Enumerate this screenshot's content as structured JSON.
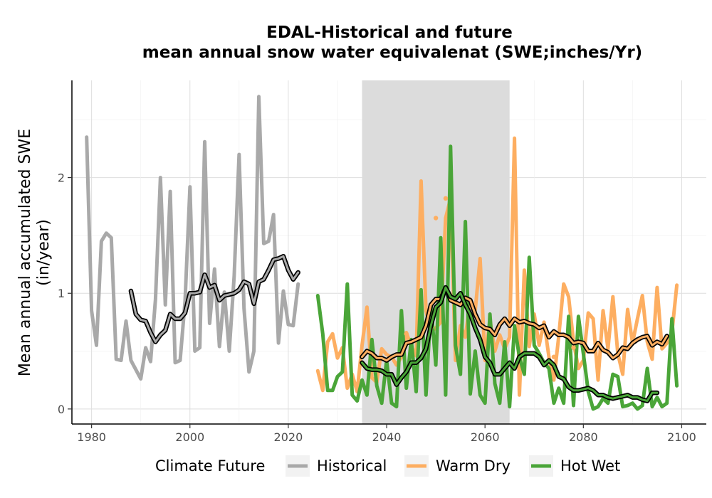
{
  "chart_data": {
    "type": "line",
    "title_line1": "EDAL-Historical and future",
    "title_line2": "mean annual snow water equivalenat (SWE;inches/Yr)",
    "xlabel": "",
    "ylabel_line1": "Mean annual accumulated SWE",
    "ylabel_line2": "(in/year)",
    "xlim": [
      1976,
      2105
    ],
    "ylim": [
      -0.13,
      2.84
    ],
    "x_ticks": [
      1980,
      2000,
      2020,
      2040,
      2060,
      2080,
      2100
    ],
    "y_ticks": [
      0,
      1,
      2
    ],
    "grid": true,
    "shaded_period": [
      2035,
      2065
    ],
    "legend": {
      "title": "Climate Future",
      "position": "bottom",
      "entries": [
        {
          "name": "Historical",
          "color": "#a9a9a9"
        },
        {
          "name": "Warm Dry",
          "color": "#fdae61"
        },
        {
          "name": "Hot Wet",
          "color": "#4aa538"
        }
      ]
    },
    "series": [
      {
        "name": "Historical",
        "color": "#a9a9a9",
        "x_start": 1979,
        "values": [
          2.35,
          0.85,
          0.55,
          1.45,
          1.52,
          1.48,
          0.43,
          0.42,
          0.76,
          0.42,
          0.34,
          0.26,
          0.53,
          0.41,
          0.95,
          2.0,
          0.9,
          1.88,
          0.4,
          0.42,
          0.93,
          1.92,
          0.5,
          0.53,
          2.31,
          0.74,
          1.21,
          0.54,
          1.01,
          0.5,
          1.15,
          2.2,
          0.87,
          0.32,
          0.5,
          2.7,
          1.43,
          1.45,
          1.68,
          0.57,
          1.02,
          0.73,
          0.72,
          1.08
        ]
      },
      {
        "name": "Historical 10-yr running mean",
        "color": "#a9a9a9",
        "smoothed": true,
        "x_start": 1988,
        "values": [
          1.02,
          0.82,
          0.77,
          0.76,
          0.66,
          0.58,
          0.64,
          0.68,
          0.82,
          0.78,
          0.78,
          0.83,
          1.0,
          1.0,
          1.01,
          1.16,
          1.05,
          1.07,
          0.94,
          0.98,
          0.99,
          1.0,
          1.03,
          1.1,
          1.08,
          0.91,
          1.1,
          1.12,
          1.2,
          1.29,
          1.3,
          1.32,
          1.2,
          1.12,
          1.18
        ]
      },
      {
        "name": "Warm Dry",
        "color": "#fdae61",
        "x_start": 2026,
        "values": [
          0.33,
          0.16,
          0.58,
          0.65,
          0.44,
          0.53,
          0.18,
          0.3,
          0.15,
          0.55,
          0.88,
          0.27,
          0.23,
          0.52,
          0.47,
          0.45,
          0.38,
          0.45,
          0.66,
          0.54,
          0.46,
          1.97,
          0.85,
          0.67,
          0.7,
          0.75,
          1.65,
          1.82,
          0.42,
          0.72,
          0.62,
          0.95,
          0.85,
          1.3,
          0.42,
          0.77,
          0.5,
          0.64,
          0.52,
          0.62,
          2.34,
          0.12,
          1.2,
          0.54,
          0.82,
          0.55,
          0.75,
          0.45,
          0.25,
          0.63,
          1.08,
          0.97,
          0.58,
          0.35,
          0.42,
          0.83,
          0.78,
          0.25,
          0.85,
          0.52,
          0.97,
          0.48,
          0.3,
          0.86,
          0.57,
          0.78,
          0.98,
          0.58,
          0.43,
          1.05,
          0.52,
          0.57,
          0.66,
          1.07
        ]
      },
      {
        "name": "Hot Wet",
        "color": "#4aa538",
        "x_start": 2026,
        "values": [
          0.98,
          0.65,
          0.16,
          0.16,
          0.28,
          0.32,
          1.08,
          0.12,
          0.07,
          0.25,
          0.12,
          0.6,
          0.2,
          0.05,
          0.42,
          0.05,
          0.02,
          0.85,
          0.18,
          0.6,
          0.15,
          1.03,
          0.12,
          0.9,
          0.38,
          1.48,
          0.12,
          2.27,
          0.55,
          0.3,
          1.62,
          0.13,
          0.5,
          0.12,
          0.05,
          0.82,
          0.22,
          0.05,
          0.58,
          0.02,
          0.72,
          0.45,
          0.3,
          1.31,
          0.55,
          0.48,
          0.4,
          0.35,
          0.05,
          0.18,
          0.05,
          0.8,
          0.03,
          0.8,
          0.48,
          0.15,
          0.0,
          0.02,
          0.09,
          0.05,
          0.3,
          0.28,
          0.02,
          0.03,
          0.05,
          0.0,
          0.03,
          0.35,
          0.02,
          0.1,
          0.02,
          0.05,
          0.78,
          0.2
        ]
      },
      {
        "name": "Warm Dry 10-yr running mean",
        "color": "#fdae61",
        "smoothed": true,
        "x_start": 2035,
        "values": [
          0.45,
          0.5,
          0.48,
          0.44,
          0.44,
          0.42,
          0.45,
          0.47,
          0.47,
          0.57,
          0.58,
          0.6,
          0.62,
          0.72,
          0.9,
          0.95,
          0.95,
          1.05,
          0.94,
          0.92,
          0.9,
          0.96,
          0.94,
          0.82,
          0.73,
          0.7,
          0.69,
          0.64,
          0.73,
          0.78,
          0.72,
          0.78,
          0.75,
          0.76,
          0.74,
          0.73,
          0.7,
          0.72,
          0.62,
          0.67,
          0.64,
          0.64,
          0.62,
          0.57,
          0.58,
          0.57,
          0.5,
          0.5,
          0.57,
          0.51,
          0.49,
          0.44,
          0.47,
          0.53,
          0.52,
          0.57,
          0.6,
          0.62,
          0.63,
          0.55,
          0.58,
          0.56,
          0.63
        ]
      },
      {
        "name": "Hot Wet 10-yr running mean",
        "color": "#4aa538",
        "smoothed": true,
        "x_start": 2035,
        "values": [
          0.4,
          0.35,
          0.34,
          0.34,
          0.33,
          0.3,
          0.3,
          0.21,
          0.27,
          0.32,
          0.4,
          0.4,
          0.44,
          0.52,
          0.72,
          0.88,
          0.92,
          1.05,
          0.97,
          0.95,
          1.0,
          0.9,
          0.82,
          0.7,
          0.6,
          0.45,
          0.4,
          0.3,
          0.3,
          0.35,
          0.4,
          0.35,
          0.45,
          0.48,
          0.48,
          0.48,
          0.45,
          0.38,
          0.42,
          0.38,
          0.28,
          0.26,
          0.19,
          0.16,
          0.16,
          0.17,
          0.18,
          0.16,
          0.12,
          0.12,
          0.1,
          0.09,
          0.1,
          0.11,
          0.12,
          0.1,
          0.1,
          0.08,
          0.07,
          0.14,
          0.14
        ]
      }
    ],
    "points": [
      {
        "x": 2047,
        "y": 1.68,
        "color": "#fdae61"
      },
      {
        "x": 2052,
        "y": 1.82,
        "color": "#fdae61"
      },
      {
        "x": 2050,
        "y": 1.65,
        "color": "#fdae61"
      },
      {
        "x": 2044,
        "y": 0.65,
        "color": "#fdae61"
      },
      {
        "x": 2074,
        "y": 0.45,
        "color": "#fdae61"
      },
      {
        "x": 2078,
        "y": 0.53,
        "color": "#fdae61"
      },
      {
        "x": 2049,
        "y": 0.7,
        "color": "#fdae61"
      }
    ]
  }
}
